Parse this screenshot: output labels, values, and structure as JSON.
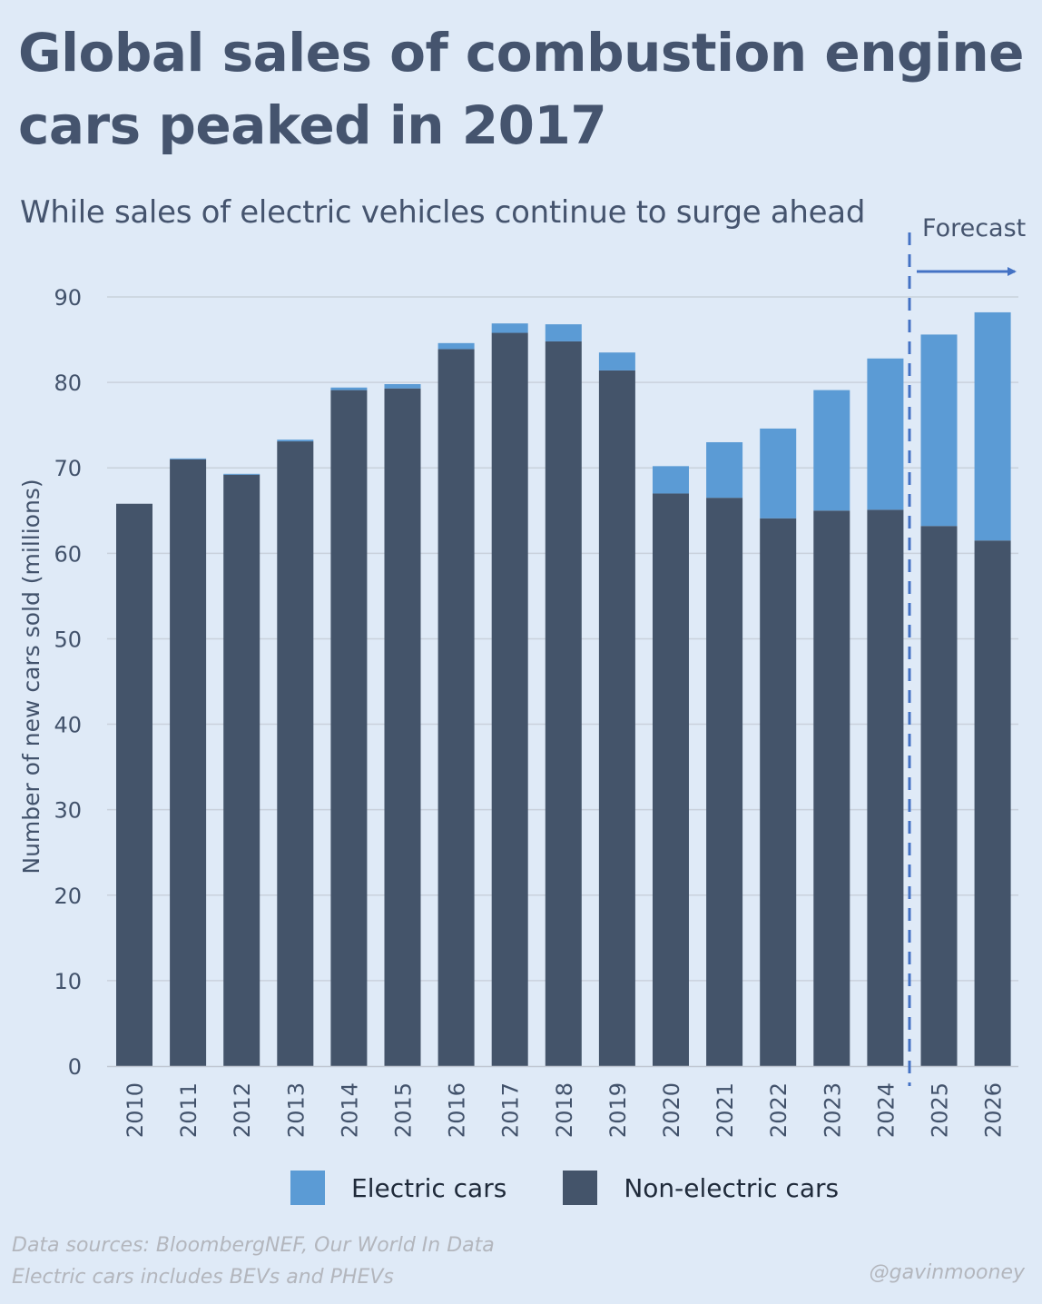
{
  "title_line1": "Global sales of combustion engine",
  "title_line2": "cars peaked in 2017",
  "subtitle": "While sales of electric vehicles continue to surge ahead",
  "forecast_label": "Forecast",
  "footer": {
    "source_line1": "Data sources: BloombergNEF, Our World In Data",
    "source_line2": "Electric cars includes BEVs and PHEVs",
    "handle": "@gavinmooney"
  },
  "colors": {
    "electric": "#5b9bd5",
    "non_electric": "#44546a",
    "background": "#dfeaf7",
    "forecast_line": "#4472c4"
  },
  "chart_data": {
    "type": "bar",
    "stacked": true,
    "title": "Global sales of combustion engine cars peaked in 2017",
    "subtitle": "While sales of electric vehicles continue to surge ahead",
    "ylabel": "Number of new cars sold (millions)",
    "xlabel": "",
    "ylim": [
      0,
      90
    ],
    "yticks": [
      0,
      10,
      20,
      30,
      40,
      50,
      60,
      70,
      80,
      90
    ],
    "grid": true,
    "legend": "bottom",
    "categories": [
      "2010",
      "2011",
      "2012",
      "2013",
      "2014",
      "2015",
      "2016",
      "2017",
      "2018",
      "2019",
      "2020",
      "2021",
      "2022",
      "2023",
      "2024",
      "2025",
      "2026"
    ],
    "series": [
      {
        "name": "Non-electric cars",
        "values": [
          65.8,
          71.0,
          69.2,
          73.1,
          79.1,
          79.3,
          83.9,
          85.8,
          84.8,
          81.4,
          67.0,
          66.5,
          64.1,
          65.0,
          65.1,
          63.2,
          61.5
        ]
      },
      {
        "name": "Electric cars",
        "values": [
          0.0,
          0.1,
          0.1,
          0.2,
          0.3,
          0.5,
          0.7,
          1.1,
          2.0,
          2.1,
          3.2,
          6.5,
          10.5,
          14.1,
          17.7,
          22.4,
          26.7
        ]
      }
    ],
    "forecast_from": "2025"
  }
}
